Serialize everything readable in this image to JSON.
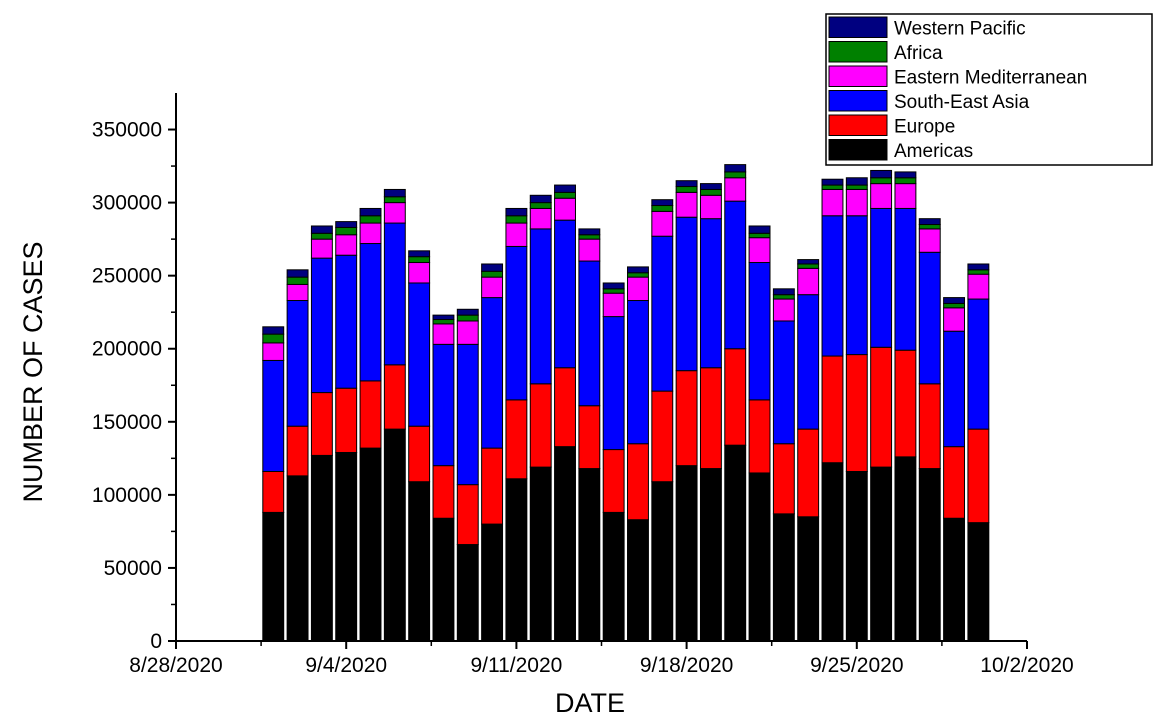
{
  "chart_data": {
    "type": "bar",
    "stacked": true,
    "title": "",
    "xlabel": "DATE",
    "ylabel": "NUMBER OF CASES",
    "xlim": [
      "2020-08-28",
      "2020-10-02"
    ],
    "ylim": [
      0,
      375000
    ],
    "x_ticks": [
      "8/28/2020",
      "9/4/2020",
      "9/11/2020",
      "9/18/2020",
      "9/25/2020",
      "10/2/2020"
    ],
    "y_ticks": [
      "0",
      "50000",
      "100000",
      "150000",
      "200000",
      "250000",
      "300000",
      "350000"
    ],
    "grid": false,
    "legend_position": "top-right",
    "categories": [
      "2020-09-01",
      "2020-09-02",
      "2020-09-03",
      "2020-09-04",
      "2020-09-05",
      "2020-09-06",
      "2020-09-07",
      "2020-09-08",
      "2020-09-09",
      "2020-09-10",
      "2020-09-11",
      "2020-09-12",
      "2020-09-13",
      "2020-09-14",
      "2020-09-15",
      "2020-09-16",
      "2020-09-17",
      "2020-09-18",
      "2020-09-19",
      "2020-09-20",
      "2020-09-21",
      "2020-09-22",
      "2020-09-23",
      "2020-09-24",
      "2020-09-25",
      "2020-09-26",
      "2020-09-27",
      "2020-09-28",
      "2020-09-29",
      "2020-09-30"
    ],
    "series": [
      {
        "name": "Americas",
        "color": "#000000",
        "values": [
          88000,
          113000,
          127000,
          129000,
          132000,
          145000,
          109000,
          84000,
          66000,
          80000,
          111000,
          119000,
          133000,
          118000,
          88000,
          83000,
          109000,
          120000,
          118000,
          134000,
          115000,
          87000,
          85000,
          122000,
          116000,
          119000,
          126000,
          118000,
          84000,
          81000
        ]
      },
      {
        "name": "Europe",
        "color": "#ff0000",
        "values": [
          28000,
          34000,
          43000,
          44000,
          46000,
          44000,
          38000,
          36000,
          41000,
          52000,
          54000,
          57000,
          54000,
          43000,
          43000,
          52000,
          62000,
          65000,
          69000,
          66000,
          50000,
          48000,
          60000,
          73000,
          80000,
          82000,
          73000,
          58000,
          49000,
          64000
        ]
      },
      {
        "name": "South-East Asia",
        "color": "#0000ff",
        "values": [
          76000,
          86000,
          92000,
          91000,
          94000,
          97000,
          98000,
          83000,
          96000,
          103000,
          105000,
          106000,
          101000,
          99000,
          91000,
          98000,
          106000,
          105000,
          102000,
          101000,
          94000,
          84000,
          92000,
          96000,
          95000,
          95000,
          97000,
          90000,
          79000,
          89000
        ]
      },
      {
        "name": "Eastern Mediterranean",
        "color": "#ff00ff",
        "values": [
          12000,
          11000,
          13000,
          14000,
          14000,
          14000,
          14000,
          14000,
          16000,
          14000,
          16000,
          14000,
          15000,
          15000,
          16000,
          16000,
          17000,
          17000,
          16000,
          16000,
          17000,
          15000,
          18000,
          18000,
          18000,
          17000,
          17000,
          16000,
          16000,
          17000
        ]
      },
      {
        "name": "Africa",
        "color": "#008000",
        "values": [
          6000,
          5000,
          4000,
          5000,
          5000,
          4000,
          4000,
          3000,
          4000,
          4000,
          5000,
          4000,
          4000,
          3000,
          3000,
          3000,
          4000,
          4000,
          4000,
          4000,
          3000,
          3000,
          3000,
          3000,
          3000,
          4000,
          4000,
          3000,
          3000,
          3000
        ]
      },
      {
        "name": "Western Pacific",
        "color": "#000080",
        "values": [
          5000,
          5000,
          5000,
          4000,
          5000,
          5000,
          4000,
          3000,
          4000,
          5000,
          5000,
          5000,
          5000,
          4000,
          4000,
          4000,
          4000,
          4000,
          4000,
          5000,
          5000,
          4000,
          3000,
          4000,
          5000,
          5000,
          4000,
          4000,
          4000,
          4000
        ]
      }
    ],
    "legend_order": [
      "Western Pacific",
      "Africa",
      "Eastern Mediterranean",
      "South-East Asia",
      "Europe",
      "Americas"
    ]
  }
}
